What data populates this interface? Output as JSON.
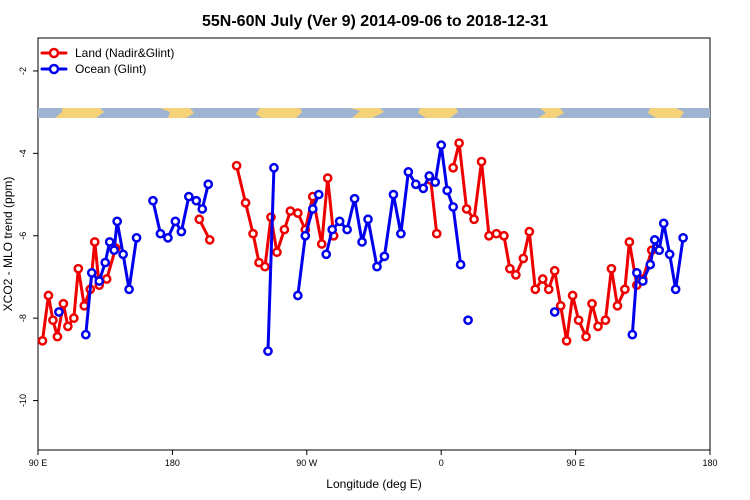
{
  "chart_data": {
    "type": "line",
    "title": "55N-60N July (Ver 9)   2014-09-06 to 2018-12-31",
    "xlabel": "Longitude (deg E)",
    "ylabel": "XCO2 - MLO trend (ppm)",
    "x_ticks": [
      {
        "value": 90,
        "label": "90 E"
      },
      {
        "value": 180,
        "label": "180"
      },
      {
        "value": 270,
        "label": "90 W"
      },
      {
        "value": 360,
        "label": "0"
      },
      {
        "value": 450,
        "label": "90 E"
      },
      {
        "value": 540,
        "label": "180"
      }
    ],
    "xlim": [
      90,
      540
    ],
    "y_ticks": [
      -2,
      -4,
      -6,
      -8,
      -10
    ],
    "ylim": [
      -11.2,
      -1.2
    ],
    "grid": false,
    "legend_position": "top-left",
    "series": [
      {
        "name": "Land (Nadir&Glint)",
        "color": "#ee0000",
        "segments": [
          [
            [
              93,
              -8.55
            ],
            [
              97,
              -7.45
            ],
            [
              100,
              -8.05
            ],
            [
              103,
              -8.45
            ],
            [
              107,
              -7.65
            ],
            [
              110,
              -8.2
            ],
            [
              114,
              -8.0
            ],
            [
              117,
              -6.8
            ],
            [
              121,
              -7.7
            ],
            [
              125,
              -7.3
            ],
            [
              128,
              -6.15
            ],
            [
              131,
              -7.2
            ],
            [
              136,
              -7.05
            ],
            [
              142,
              -6.3
            ]
          ],
          [
            [
              198,
              -5.6
            ],
            [
              205,
              -6.1
            ]
          ],
          [
            [
              223,
              -4.3
            ],
            [
              229,
              -5.2
            ],
            [
              234,
              -5.95
            ],
            [
              238,
              -6.65
            ],
            [
              242,
              -6.75
            ],
            [
              246,
              -5.55
            ],
            [
              250,
              -6.4
            ],
            [
              255,
              -5.85
            ],
            [
              259,
              -5.4
            ],
            [
              264,
              -5.45
            ],
            [
              269,
              -5.85
            ],
            [
              274,
              -5.05
            ],
            [
              280,
              -6.2
            ],
            [
              284,
              -4.6
            ],
            [
              288,
              -6.0
            ]
          ],
          [
            [
              353,
              -4.65
            ],
            [
              357,
              -5.95
            ]
          ],
          [
            [
              368,
              -4.35
            ],
            [
              372,
              -3.75
            ],
            [
              377,
              -5.35
            ],
            [
              382,
              -5.6
            ],
            [
              387,
              -4.2
            ],
            [
              392,
              -6.0
            ],
            [
              397,
              -5.95
            ],
            [
              402,
              -6.0
            ],
            [
              406,
              -6.8
            ],
            [
              410,
              -6.95
            ],
            [
              415,
              -6.55
            ],
            [
              419,
              -5.9
            ],
            [
              423,
              -7.3
            ],
            [
              428,
              -7.05
            ],
            [
              432,
              -7.3
            ],
            [
              436,
              -6.85
            ],
            [
              440,
              -7.7
            ],
            [
              444,
              -8.55
            ],
            [
              448,
              -7.45
            ],
            [
              452,
              -8.05
            ],
            [
              457,
              -8.45
            ],
            [
              461,
              -7.65
            ],
            [
              465,
              -8.2
            ],
            [
              470,
              -8.05
            ],
            [
              474,
              -6.8
            ],
            [
              478,
              -7.7
            ],
            [
              483,
              -7.3
            ],
            [
              486,
              -6.15
            ],
            [
              491,
              -7.2
            ],
            [
              495,
              -7.05
            ],
            [
              501,
              -6.35
            ]
          ]
        ]
      },
      {
        "name": "Ocean (Glint)",
        "color": "#0000ee",
        "segments": [
          [
            [
              104,
              -7.85
            ]
          ],
          [
            [
              122,
              -8.4
            ],
            [
              126,
              -6.9
            ],
            [
              131,
              -7.1
            ],
            [
              135,
              -6.65
            ],
            [
              138,
              -6.15
            ],
            [
              141,
              -6.35
            ],
            [
              143,
              -5.65
            ],
            [
              147,
              -6.45
            ],
            [
              151,
              -7.3
            ],
            [
              156,
              -6.05
            ]
          ],
          [
            [
              167,
              -5.15
            ],
            [
              172,
              -5.95
            ],
            [
              177,
              -6.05
            ],
            [
              182,
              -5.65
            ],
            [
              186,
              -5.9
            ],
            [
              191,
              -5.05
            ],
            [
              196,
              -5.15
            ],
            [
              200,
              -5.35
            ],
            [
              204,
              -4.75
            ]
          ],
          [
            [
              244,
              -8.8
            ],
            [
              248,
              -4.35
            ]
          ],
          [
            [
              264,
              -7.45
            ],
            [
              269,
              -6.0
            ],
            [
              274,
              -5.35
            ],
            [
              278,
              -5.0
            ]
          ],
          [
            [
              283,
              -6.45
            ],
            [
              287,
              -5.85
            ],
            [
              292,
              -5.65
            ],
            [
              297,
              -5.85
            ],
            [
              302,
              -5.1
            ],
            [
              307,
              -6.15
            ],
            [
              311,
              -5.6
            ],
            [
              317,
              -6.75
            ],
            [
              322,
              -6.5
            ],
            [
              328,
              -5.0
            ],
            [
              333,
              -5.95
            ],
            [
              338,
              -4.45
            ],
            [
              343,
              -4.75
            ],
            [
              348,
              -4.85
            ],
            [
              352,
              -4.55
            ],
            [
              356,
              -4.7
            ],
            [
              360,
              -3.8
            ],
            [
              364,
              -4.9
            ],
            [
              368,
              -5.3
            ],
            [
              373,
              -6.7
            ]
          ],
          [
            [
              378,
              -8.05
            ]
          ],
          [
            [
              436,
              -7.85
            ]
          ],
          [
            [
              488,
              -8.4
            ],
            [
              491,
              -6.9
            ],
            [
              495,
              -7.1
            ],
            [
              500,
              -6.7
            ],
            [
              503,
              -6.1
            ],
            [
              506,
              -6.35
            ],
            [
              509,
              -5.7
            ],
            [
              513,
              -6.45
            ],
            [
              517,
              -7.3
            ],
            [
              522,
              -6.05
            ]
          ]
        ]
      }
    ]
  }
}
